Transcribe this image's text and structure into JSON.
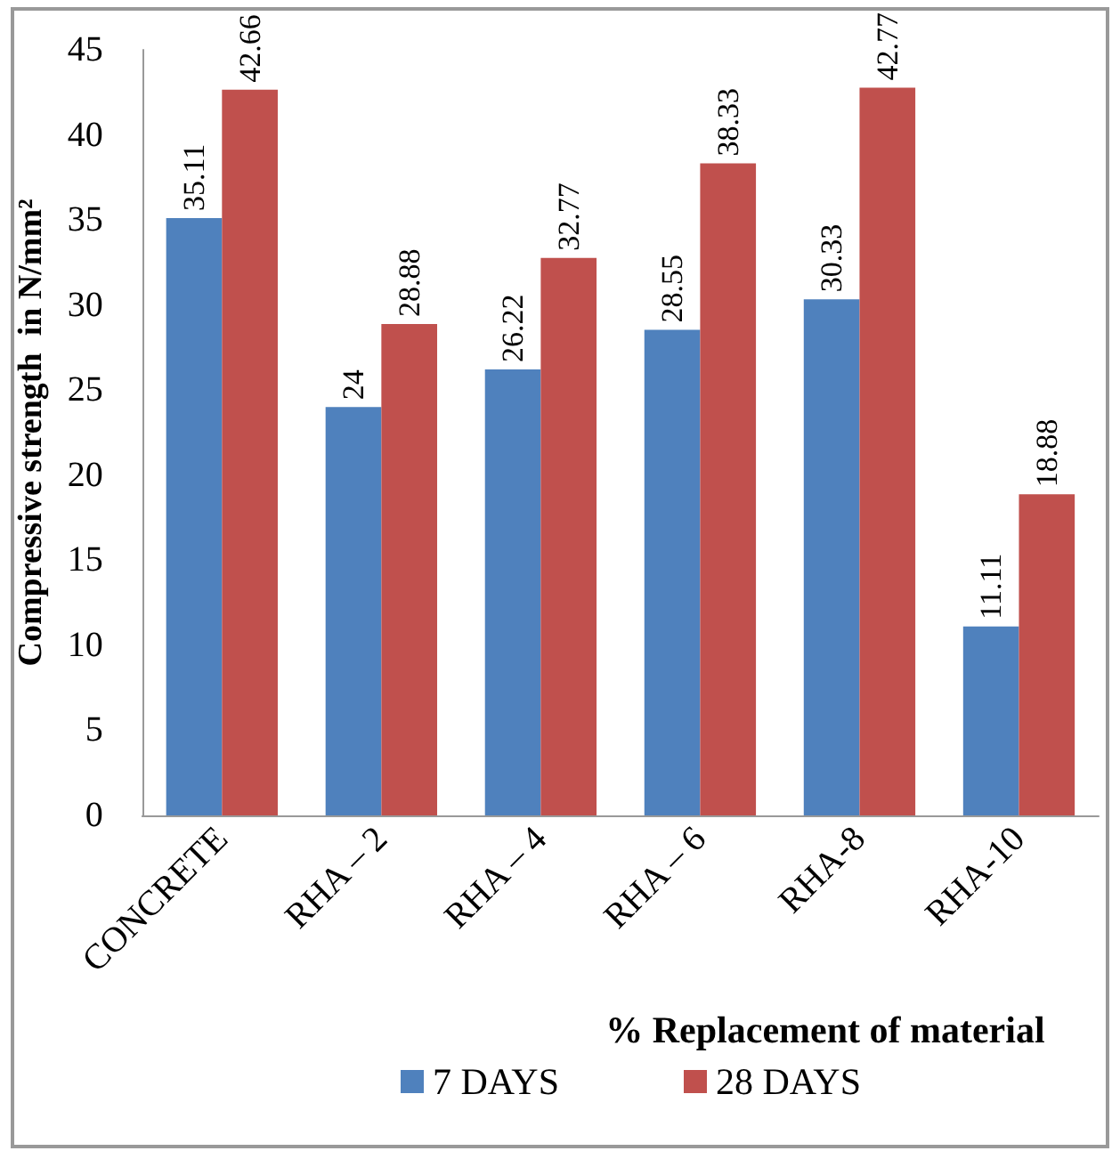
{
  "chart_data": {
    "type": "bar",
    "xlabel": "% Replacement of material",
    "ylabel": "Compressive strength  in N/mm²",
    "categories": [
      "CONCRETE",
      "RHA – 2",
      "RHA – 4",
      "RHA – 6",
      "RHA-8",
      "RHA-10"
    ],
    "series": [
      {
        "name": "7 DAYS",
        "color": "#4f81bd",
        "values": [
          35.11,
          24,
          26.22,
          28.55,
          30.33,
          11.11
        ]
      },
      {
        "name": "28 DAYS",
        "color": "#c0504d",
        "values": [
          42.66,
          28.88,
          32.77,
          38.33,
          42.77,
          18.88
        ]
      }
    ],
    "ylim": [
      0,
      45
    ],
    "yticks": [
      0,
      5,
      10,
      15,
      20,
      25,
      30,
      35,
      40,
      45
    ],
    "grid": false,
    "legend": "bottom",
    "data_labels": true
  }
}
